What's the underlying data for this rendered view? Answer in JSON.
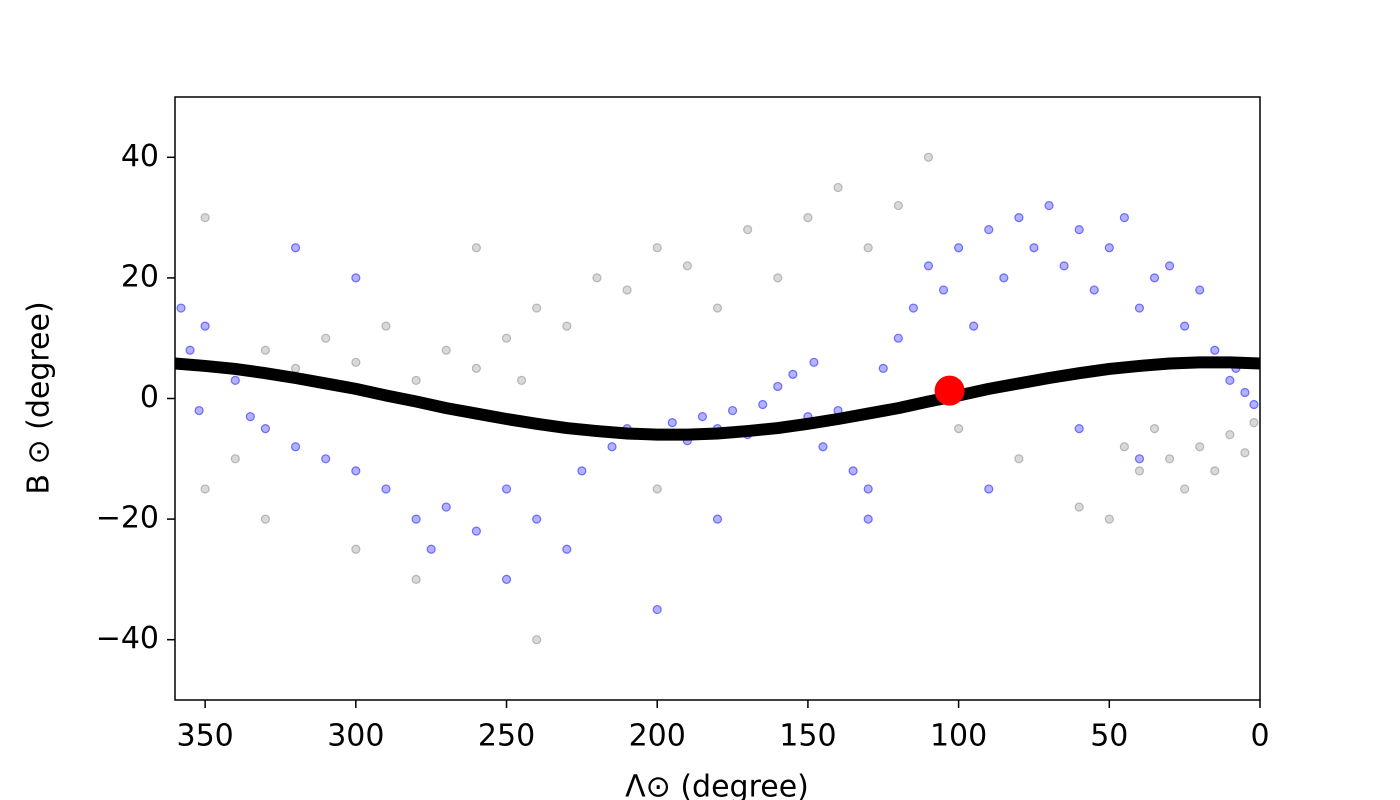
{
  "chart_data": {
    "type": "scatter",
    "xlabel": "Λ⊙ (degree)",
    "ylabel": "B ⊙ (degree)",
    "xlim": [
      360,
      0
    ],
    "ylim": [
      -50,
      50
    ],
    "xticks": [
      350,
      300,
      250,
      200,
      150,
      100,
      50,
      0
    ],
    "yticks": [
      {
        "value": -40,
        "label": "−40"
      },
      {
        "value": -20,
        "label": "−20"
      },
      0,
      20,
      40
    ],
    "series": [
      {
        "type": "scatter",
        "color": "#808080",
        "x": [
          340,
          330,
          320,
          310,
          300,
          290,
          280,
          270,
          260,
          250,
          245,
          240,
          230,
          220,
          210,
          200,
          190,
          180,
          170,
          160,
          150,
          140,
          130,
          120,
          350,
          330,
          280,
          240,
          45,
          40,
          35,
          30,
          25,
          20,
          15,
          10,
          5,
          2,
          60,
          50,
          80,
          100,
          110,
          200,
          300,
          260,
          350
        ],
        "values": [
          -10,
          8,
          5,
          10,
          6,
          12,
          3,
          8,
          5,
          10,
          3,
          15,
          12,
          20,
          18,
          25,
          22,
          15,
          28,
          20,
          30,
          35,
          25,
          32,
          -15,
          -20,
          -30,
          -40,
          -8,
          -12,
          -5,
          -10,
          -15,
          -8,
          -12,
          -6,
          -9,
          -4,
          -18,
          -20,
          -10,
          -5,
          40,
          -15,
          -25,
          25,
          30
        ]
      },
      {
        "type": "scatter",
        "color": "#0000ff",
        "x": [
          355,
          350,
          345,
          340,
          358,
          352,
          335,
          330,
          320,
          310,
          300,
          290,
          280,
          275,
          270,
          260,
          250,
          240,
          230,
          225,
          215,
          210,
          200,
          195,
          190,
          185,
          180,
          175,
          170,
          165,
          160,
          155,
          150,
          148,
          145,
          140,
          135,
          130,
          125,
          120,
          115,
          110,
          105,
          100,
          95,
          90,
          85,
          80,
          75,
          70,
          65,
          60,
          55,
          50,
          45,
          40,
          35,
          30,
          25,
          20,
          15,
          10,
          5,
          2,
          8,
          60,
          90,
          300,
          320,
          250,
          200,
          180,
          130,
          40
        ],
        "values": [
          8,
          12,
          5,
          3,
          15,
          -2,
          -3,
          -5,
          -8,
          -10,
          -12,
          -15,
          -20,
          -25,
          -18,
          -22,
          -15,
          -20,
          -25,
          -12,
          -8,
          -5,
          -6,
          -4,
          -7,
          -3,
          -5,
          -2,
          -6,
          -1,
          2,
          4,
          -3,
          6,
          -8,
          -2,
          -12,
          -15,
          5,
          10,
          15,
          22,
          18,
          25,
          12,
          28,
          20,
          30,
          25,
          32,
          22,
          28,
          18,
          25,
          30,
          15,
          20,
          22,
          12,
          18,
          8,
          3,
          1,
          -1,
          5,
          -5,
          -15,
          20,
          25,
          -30,
          -35,
          -20,
          -20,
          -10
        ]
      },
      {
        "type": "line",
        "color": "#000000",
        "x": [
          360,
          350,
          340,
          330,
          320,
          310,
          300,
          290,
          280,
          270,
          260,
          250,
          240,
          230,
          220,
          210,
          200,
          190,
          180,
          170,
          160,
          150,
          140,
          130,
          120,
          110,
          100,
          90,
          80,
          70,
          60,
          50,
          40,
          30,
          20,
          10,
          0
        ],
        "values": [
          5.8,
          5.4,
          4.9,
          4.2,
          3.4,
          2.5,
          1.6,
          0.5,
          -0.5,
          -1.6,
          -2.5,
          -3.4,
          -4.2,
          -4.9,
          -5.4,
          -5.8,
          -6.0,
          -6.0,
          -5.8,
          -5.4,
          -4.9,
          -4.2,
          -3.4,
          -2.5,
          -1.6,
          -0.5,
          0.5,
          1.6,
          2.5,
          3.4,
          4.2,
          4.9,
          5.4,
          5.8,
          6.0,
          6.0,
          5.8
        ]
      },
      {
        "type": "point",
        "color": "#ff0000",
        "x": [
          103
        ],
        "values": [
          1.3
        ]
      }
    ]
  }
}
